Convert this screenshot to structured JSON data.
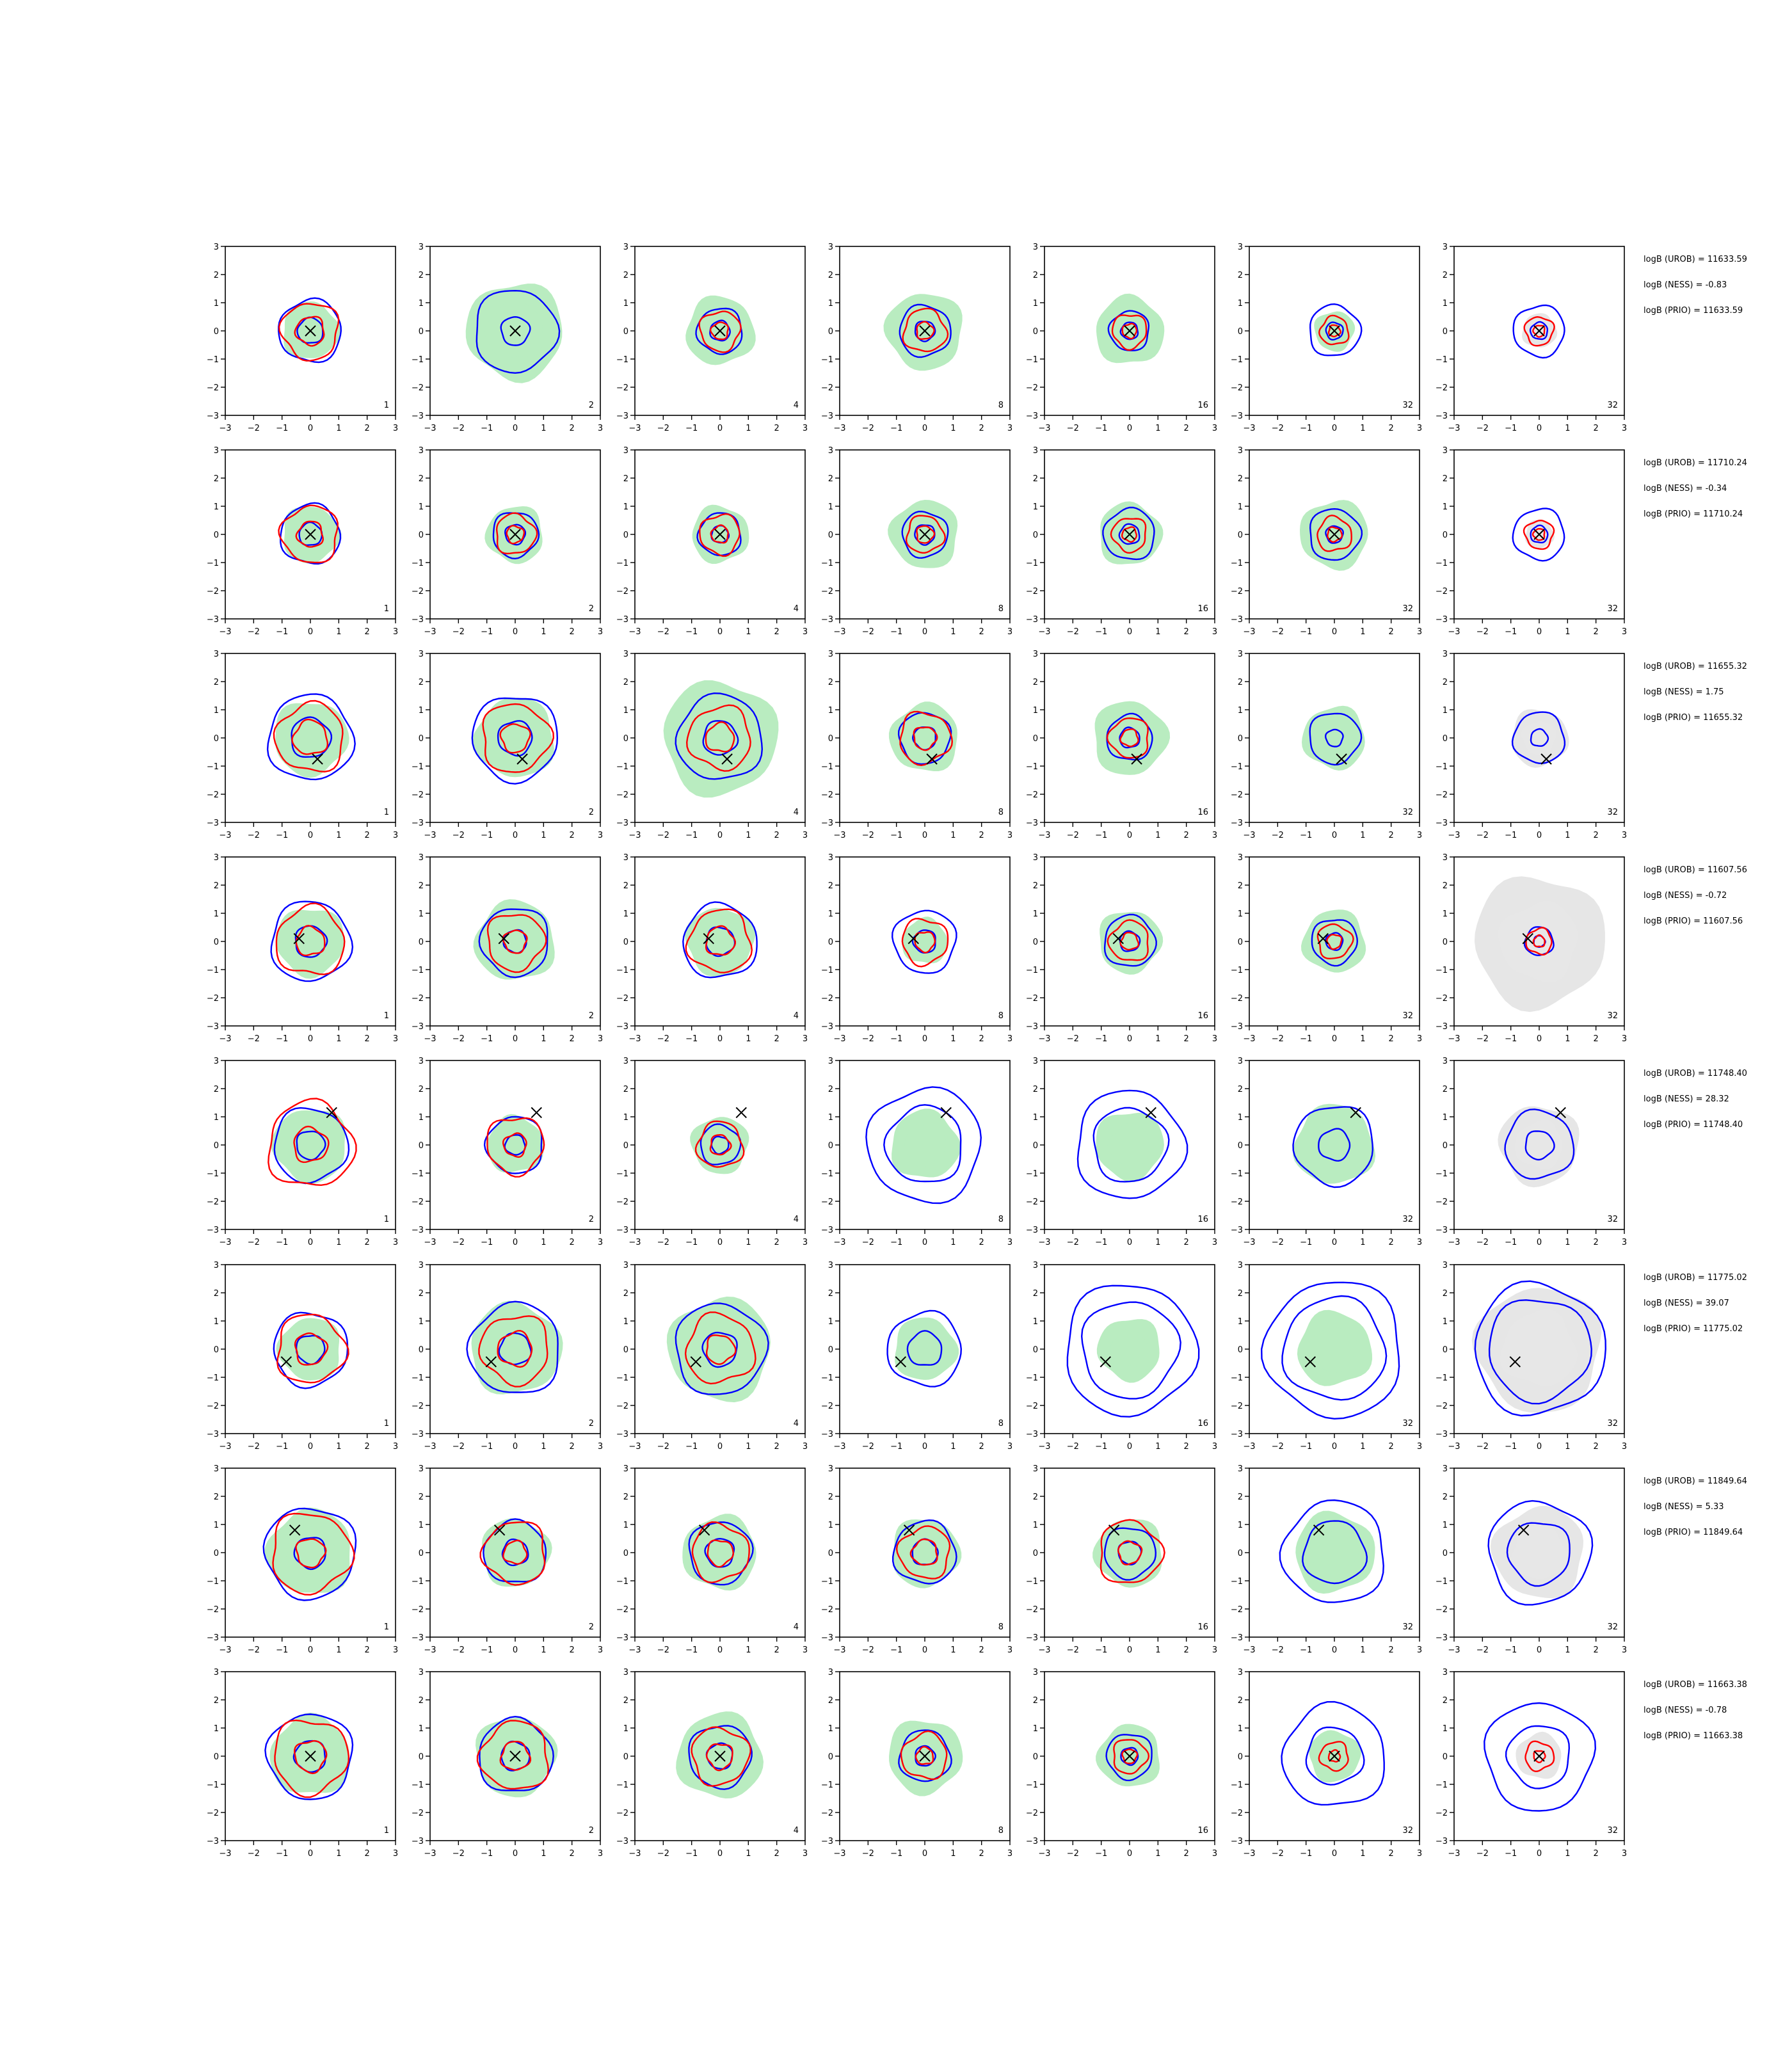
{
  "chart_data": {
    "type": "contour-grid",
    "x_ticks": [
      "−3",
      "−2",
      "−1",
      "0",
      "1",
      "2",
      "3"
    ],
    "y_ticks": [
      "3",
      "2",
      "1",
      "0",
      "−1",
      "−2",
      "−3"
    ],
    "xlim": [
      -3,
      3
    ],
    "ylim": [
      -3,
      3
    ],
    "colors": {
      "fill_green": "#b9ecc0",
      "fill_gray": "#e6e6e6",
      "contour_blue": "#0000ff",
      "contour_red": "#ff0000",
      "marker": "#000000"
    },
    "rows": [
      {
        "truth": [
          0,
          0
        ],
        "panels": [
          {
            "label": "1",
            "fill": "green",
            "fill_r": 1.0,
            "blue": [
              1.1,
              0.45
            ],
            "red": [
              1.0,
              0.5
            ]
          },
          {
            "label": "2",
            "fill": "green",
            "fill_r": 1.7,
            "blue": [
              1.45,
              0.5
            ],
            "red": []
          },
          {
            "label": "4",
            "fill": "green",
            "fill_r": 1.2,
            "blue": [
              0.8,
              0.35
            ],
            "red": [
              0.7,
              0.3
            ]
          },
          {
            "label": "8",
            "fill": "green",
            "fill_r": 1.35,
            "blue": [
              0.9,
              0.35
            ],
            "red": [
              0.75,
              0.3
            ]
          },
          {
            "label": "16",
            "fill": "green",
            "fill_r": 1.2,
            "blue": [
              0.7,
              0.3
            ],
            "red": [
              0.6,
              0.25
            ]
          },
          {
            "label": "32",
            "fill": "green",
            "fill_r": 0.7,
            "blue": [
              0.9,
              0.3
            ],
            "red": [
              0.5,
              0.2
            ]
          },
          {
            "label": "32",
            "fill": "gray",
            "fill_r": 0.6,
            "blue": [
              0.9,
              0.3
            ],
            "red": [
              0.5,
              0.2
            ]
          }
        ],
        "annotations": [
          "logB (UROB) = 11633.59",
          "logB (NESS) = -0.83",
          "logB (PRIO) = 11633.59"
        ]
      },
      {
        "truth": [
          0,
          0
        ],
        "panels": [
          {
            "label": "1",
            "fill": "green",
            "fill_r": 1.0,
            "blue": [
              1.05,
              0.4
            ],
            "red": [
              1.0,
              0.45
            ]
          },
          {
            "label": "2",
            "fill": "green",
            "fill_r": 1.0,
            "blue": [
              0.8,
              0.35
            ],
            "red": [
              0.7,
              0.3
            ]
          },
          {
            "label": "4",
            "fill": "green",
            "fill_r": 1.0,
            "blue": [
              0.75,
              0.3
            ],
            "red": [
              0.7,
              0.3
            ]
          },
          {
            "label": "8",
            "fill": "green",
            "fill_r": 1.2,
            "blue": [
              0.8,
              0.35
            ],
            "red": [
              0.65,
              0.3
            ]
          },
          {
            "label": "16",
            "fill": "green",
            "fill_r": 1.1,
            "blue": [
              0.9,
              0.35
            ],
            "red": [
              0.6,
              0.25
            ]
          },
          {
            "label": "32",
            "fill": "green",
            "fill_r": 1.2,
            "blue": [
              0.9,
              0.3
            ],
            "red": [
              0.6,
              0.25
            ]
          },
          {
            "label": "32",
            "fill": "gray",
            "fill_r": 0.5,
            "blue": [
              0.9,
              0.3
            ],
            "red": [
              0.5,
              0.2
            ]
          }
        ],
        "annotations": [
          "logB (UROB) = 11710.24",
          "logB (NESS) = -0.34",
          "logB (PRIO) = 11710.24"
        ]
      },
      {
        "truth": [
          0.25,
          -0.75
        ],
        "panels": [
          {
            "label": "1",
            "fill": "green",
            "fill_r": 1.3,
            "blue": [
              1.5,
              0.7
            ],
            "red": [
              1.2,
              0.6
            ]
          },
          {
            "label": "2",
            "fill": "green",
            "fill_r": 1.4,
            "blue": [
              1.5,
              0.6
            ],
            "red": [
              1.2,
              0.5
            ]
          },
          {
            "label": "4",
            "fill": "green",
            "fill_r": 2.0,
            "blue": [
              1.5,
              0.6
            ],
            "red": [
              1.1,
              0.5
            ]
          },
          {
            "label": "8",
            "fill": "green",
            "fill_r": 1.2,
            "blue": [
              0.9,
              0.4
            ],
            "red": [
              0.9,
              0.4
            ]
          },
          {
            "label": "16",
            "fill": "green",
            "fill_r": 1.3,
            "blue": [
              0.8,
              0.35
            ],
            "red": [
              0.7,
              0.3
            ]
          },
          {
            "label": "32",
            "fill": "green",
            "fill_r": 1.1,
            "blue": [
              0.9,
              0.3
            ],
            "red": []
          },
          {
            "label": "32",
            "fill": "gray",
            "fill_r": 1.0,
            "blue": [
              0.9,
              0.3
            ],
            "red": []
          }
        ],
        "annotations": [
          "logB (UROB) = 11655.32",
          "logB (NESS) = 1.75",
          "logB (PRIO) = 11655.32"
        ]
      },
      {
        "truth": [
          -0.4,
          0.1
        ],
        "panels": [
          {
            "label": "1",
            "fill": "green",
            "fill_r": 1.2,
            "blue": [
              1.4,
              0.55
            ],
            "red": [
              1.2,
              0.5
            ]
          },
          {
            "label": "2",
            "fill": "green",
            "fill_r": 1.4,
            "blue": [
              1.2,
              0.4
            ],
            "red": [
              1.0,
              0.4
            ]
          },
          {
            "label": "4",
            "fill": "green",
            "fill_r": 1.2,
            "blue": [
              1.3,
              0.5
            ],
            "red": [
              1.1,
              0.5
            ]
          },
          {
            "label": "8",
            "fill": "green",
            "fill_r": 0.8,
            "blue": [
              1.1,
              0.4
            ],
            "red": [
              0.8,
              0.35
            ]
          },
          {
            "label": "16",
            "fill": "green",
            "fill_r": 1.1,
            "blue": [
              0.9,
              0.35
            ],
            "red": [
              0.7,
              0.3
            ]
          },
          {
            "label": "32",
            "fill": "green",
            "fill_r": 1.1,
            "blue": [
              0.8,
              0.3
            ],
            "red": [
              0.6,
              0.25
            ]
          },
          {
            "label": "32",
            "fill": "gray",
            "fill_r": 2.3,
            "blue": [
              0.5,
              0.2
            ],
            "red": [
              0.45,
              0.2
            ]
          }
        ],
        "annotations": [
          "logB (UROB) = 11607.56",
          "logB (NESS) = -0.72",
          "logB (PRIO) = 11607.56"
        ]
      },
      {
        "truth": [
          0.75,
          1.15
        ],
        "panels": [
          {
            "label": "1",
            "fill": "green",
            "fill_r": 1.3,
            "blue": [
              1.3,
              0.5
            ],
            "red": [
              1.5,
              0.6
            ]
          },
          {
            "label": "2",
            "fill": "green",
            "fill_r": 1.0,
            "blue": [
              1.0,
              0.35
            ],
            "red": [
              1.0,
              0.4
            ]
          },
          {
            "label": "4",
            "fill": "green",
            "fill_r": 1.0,
            "blue": [
              0.7,
              0.3
            ],
            "red": [
              0.8,
              0.35
            ]
          },
          {
            "label": "8",
            "fill": "green",
            "fill_r": 1.2,
            "blue": [
              2.0,
              1.35
            ],
            "red": []
          },
          {
            "label": "16",
            "fill": "green",
            "fill_r": 1.2,
            "blue": [
              1.9,
              1.3
            ],
            "red": []
          },
          {
            "label": "32",
            "fill": "green",
            "fill_r": 1.4,
            "blue": [
              1.4,
              0.55
            ],
            "red": []
          },
          {
            "label": "32",
            "fill": "gray",
            "fill_r": 1.4,
            "blue": [
              1.2,
              0.5
            ],
            "red": []
          }
        ],
        "annotations": [
          "logB (UROB) = 11748.40",
          "logB (NESS) = 28.32",
          "logB (PRIO) = 11748.40"
        ]
      },
      {
        "truth": [
          -0.85,
          -0.45
        ],
        "panels": [
          {
            "label": "1",
            "fill": "green",
            "fill_r": 1.1,
            "blue": [
              1.3,
              0.5
            ],
            "red": [
              1.2,
              0.55
            ]
          },
          {
            "label": "2",
            "fill": "green",
            "fill_r": 1.6,
            "blue": [
              1.6,
              0.55
            ],
            "red": [
              1.2,
              0.6
            ]
          },
          {
            "label": "4",
            "fill": "green",
            "fill_r": 1.8,
            "blue": [
              1.6,
              0.6
            ],
            "red": [
              1.2,
              0.5
            ]
          },
          {
            "label": "8",
            "fill": "green",
            "fill_r": 1.1,
            "blue": [
              1.3,
              0.6
            ],
            "red": []
          },
          {
            "label": "16",
            "fill": "green",
            "fill_r": 1.1,
            "blue": [
              2.3,
              1.7
            ],
            "red": []
          },
          {
            "label": "32",
            "fill": "green",
            "fill_r": 1.3,
            "blue": [
              2.4,
              1.8
            ],
            "red": []
          },
          {
            "label": "32",
            "fill": "gray",
            "fill_r": 2.2,
            "blue": [
              2.3,
              1.8
            ],
            "red": []
          }
        ],
        "annotations": [
          "logB (UROB) = 11775.02",
          "logB (NESS) = 39.07",
          "logB (PRIO) = 11775.02"
        ]
      },
      {
        "truth": [
          -0.55,
          0.8
        ],
        "panels": [
          {
            "label": "1",
            "fill": "green",
            "fill_r": 1.5,
            "blue": [
              1.6,
              0.55
            ],
            "red": [
              1.4,
              0.5
            ]
          },
          {
            "label": "2",
            "fill": "green",
            "fill_r": 1.2,
            "blue": [
              1.1,
              0.45
            ],
            "red": [
              1.1,
              0.4
            ]
          },
          {
            "label": "4",
            "fill": "green",
            "fill_r": 1.3,
            "blue": [
              1.1,
              0.5
            ],
            "red": [
              1.0,
              0.45
            ]
          },
          {
            "label": "8",
            "fill": "green",
            "fill_r": 1.2,
            "blue": [
              1.1,
              0.45
            ],
            "red": [
              0.9,
              0.45
            ]
          },
          {
            "label": "16",
            "fill": "green",
            "fill_r": 1.2,
            "blue": [
              0.9,
              0.4
            ],
            "red": [
              1.1,
              0.4
            ]
          },
          {
            "label": "32",
            "fill": "green",
            "fill_r": 1.4,
            "blue": [
              1.8,
              1.1
            ],
            "red": []
          },
          {
            "label": "32",
            "fill": "gray",
            "fill_r": 1.6,
            "blue": [
              1.8,
              1.1
            ],
            "red": []
          }
        ],
        "annotations": [
          "logB (UROB) = 11849.64",
          "logB (NESS) = 5.33",
          "logB (PRIO) = 11849.64"
        ]
      },
      {
        "truth": [
          0,
          0
        ],
        "panels": [
          {
            "label": "1",
            "fill": "green",
            "fill_r": 1.4,
            "blue": [
              1.5,
              0.55
            ],
            "red": [
              1.3,
              0.55
            ]
          },
          {
            "label": "2",
            "fill": "green",
            "fill_r": 1.4,
            "blue": [
              1.3,
              0.5
            ],
            "red": [
              1.2,
              0.5
            ]
          },
          {
            "label": "4",
            "fill": "green",
            "fill_r": 1.5,
            "blue": [
              1.1,
              0.45
            ],
            "red": [
              1.0,
              0.45
            ]
          },
          {
            "label": "8",
            "fill": "green",
            "fill_r": 1.3,
            "blue": [
              0.9,
              0.35
            ],
            "red": [
              0.8,
              0.3
            ]
          },
          {
            "label": "16",
            "fill": "green",
            "fill_r": 1.1,
            "blue": [
              0.8,
              0.3
            ],
            "red": [
              0.6,
              0.25
            ]
          },
          {
            "label": "32",
            "fill": "green",
            "fill_r": 0.9,
            "blue": [
              1.8,
              1.0
            ],
            "red": [
              0.5,
              0.2
            ]
          },
          {
            "label": "32",
            "fill": "gray",
            "fill_r": 0.8,
            "blue": [
              1.9,
              1.1
            ],
            "red": [
              0.5,
              0.2
            ]
          }
        ],
        "annotations": [
          "logB (UROB) = 11663.38",
          "logB (NESS) = -0.78",
          "logB (PRIO) = 11663.38"
        ]
      }
    ]
  }
}
